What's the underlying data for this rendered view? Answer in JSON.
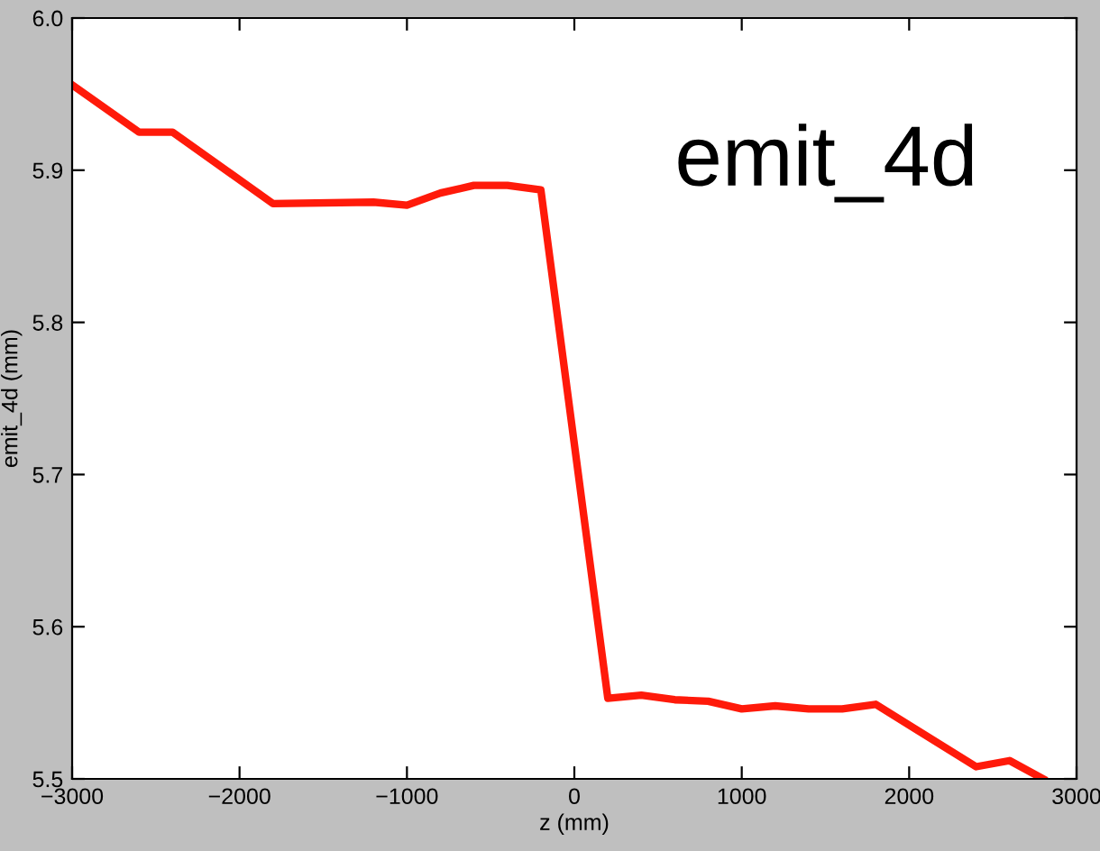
{
  "chart_data": {
    "type": "line",
    "xlabel": "z (mm)",
    "ylabel": "emit_4d (mm)",
    "annotations": [
      "emit_4d"
    ],
    "x": [
      -3000,
      -2600,
      -2400,
      -1800,
      -1200,
      -1000,
      -800,
      -600,
      -400,
      -200,
      200,
      400,
      600,
      800,
      1000,
      1200,
      1400,
      1600,
      1800,
      2400,
      2600,
      2800
    ],
    "series": [
      {
        "color": "#ff1a0a",
        "values": [
          5.956,
          5.925,
          5.925,
          5.878,
          5.879,
          5.877,
          5.885,
          5.89,
          5.89,
          5.887,
          5.553,
          5.555,
          5.552,
          5.551,
          5.546,
          5.548,
          5.546,
          5.546,
          5.549,
          5.508,
          5.512,
          5.5
        ]
      }
    ],
    "xlim": [
      -3000,
      3000
    ],
    "xticks": [
      {
        "value": -3000,
        "label": "−3000"
      },
      {
        "value": -2000,
        "label": "−2000"
      },
      {
        "value": -1000,
        "label": "−1000"
      },
      0,
      1000,
      2000,
      3000
    ],
    "ylim": [
      5.5,
      6.0
    ],
    "yticks": [
      {
        "value": 5.5,
        "label": "5.5"
      },
      {
        "value": 5.6,
        "label": "5.6"
      },
      {
        "value": 5.7,
        "label": "5.7"
      },
      {
        "value": 5.8,
        "label": "5.8"
      },
      {
        "value": 5.9,
        "label": "5.9"
      },
      {
        "value": 6.0,
        "label": "6.0"
      }
    ],
    "grid": false,
    "legend": false,
    "marker": "none",
    "line_style": "solid"
  }
}
